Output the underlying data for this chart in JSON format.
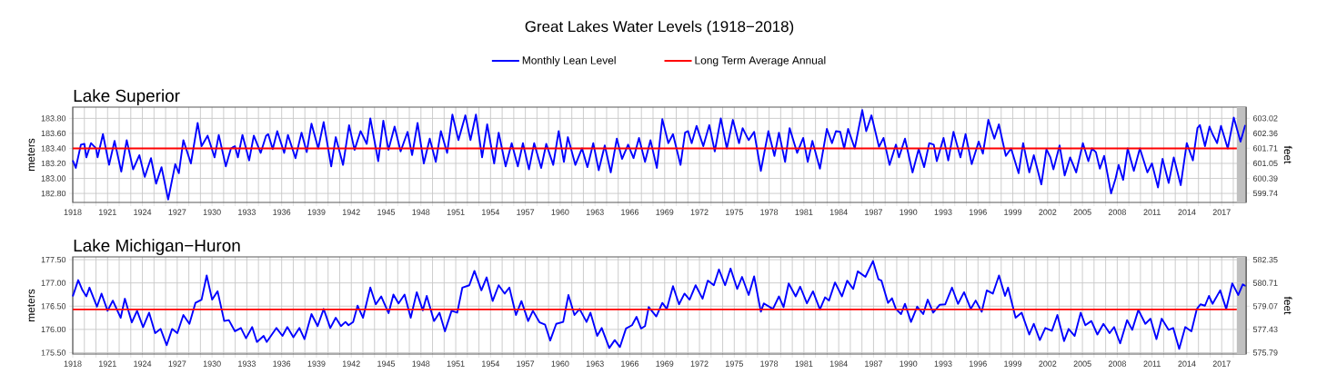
{
  "chart_data": [
    {
      "type": "line",
      "title": "Great Lakes Water Levels (1918−2018)",
      "subtitle": "Lake Superior",
      "ylabel": "meters",
      "y2label": "feet",
      "legend": "top",
      "grid": true,
      "xlim": [
        1918,
        2019.1
      ],
      "ylim": [
        182.68,
        183.95
      ],
      "y2lim": [
        599.34,
        603.51
      ],
      "xticks": [
        1918,
        {
          "value": 1919,
          "label": null
        },
        {
          "value": 1920,
          "label": null
        },
        1921,
        {
          "value": 1922,
          "label": null
        },
        {
          "value": 1923,
          "label": null
        },
        1924,
        {
          "value": 1925,
          "label": null
        },
        {
          "value": 1926,
          "label": null
        },
        1927,
        {
          "value": 1928,
          "label": null
        },
        {
          "value": 1929,
          "label": null
        },
        1930,
        {
          "value": 1931,
          "label": null
        },
        {
          "value": 1932,
          "label": null
        },
        1933,
        {
          "value": 1934,
          "label": null
        },
        {
          "value": 1935,
          "label": null
        },
        1936,
        {
          "value": 1937,
          "label": null
        },
        {
          "value": 1938,
          "label": null
        },
        1939,
        {
          "value": 1940,
          "label": null
        },
        {
          "value": 1941,
          "label": null
        },
        1942,
        {
          "value": 1943,
          "label": null
        },
        {
          "value": 1944,
          "label": null
        },
        1945,
        {
          "value": 1946,
          "label": null
        },
        {
          "value": 1947,
          "label": null
        },
        1948,
        {
          "value": 1949,
          "label": null
        },
        {
          "value": 1950,
          "label": null
        },
        1951,
        {
          "value": 1952,
          "label": null
        },
        {
          "value": 1953,
          "label": null
        },
        1954,
        {
          "value": 1955,
          "label": null
        },
        {
          "value": 1956,
          "label": null
        },
        1957,
        {
          "value": 1958,
          "label": null
        },
        {
          "value": 1959,
          "label": null
        },
        1960,
        {
          "value": 1961,
          "label": null
        },
        {
          "value": 1962,
          "label": null
        },
        1963,
        {
          "value": 1964,
          "label": null
        },
        {
          "value": 1965,
          "label": null
        },
        1966,
        {
          "value": 1967,
          "label": null
        },
        {
          "value": 1968,
          "label": null
        },
        1969,
        {
          "value": 1970,
          "label": null
        },
        {
          "value": 1971,
          "label": null
        },
        1972,
        {
          "value": 1973,
          "label": null
        },
        {
          "value": 1974,
          "label": null
        },
        1975,
        {
          "value": 1976,
          "label": null
        },
        {
          "value": 1977,
          "label": null
        },
        1978,
        {
          "value": 1979,
          "label": null
        },
        {
          "value": 1980,
          "label": null
        },
        1981,
        {
          "value": 1982,
          "label": null
        },
        {
          "value": 1983,
          "label": null
        },
        1984,
        {
          "value": 1985,
          "label": null
        },
        {
          "value": 1986,
          "label": null
        },
        1987,
        {
          "value": 1988,
          "label": null
        },
        {
          "value": 1989,
          "label": null
        },
        1990,
        {
          "value": 1991,
          "label": null
        },
        {
          "value": 1992,
          "label": null
        },
        1993,
        {
          "value": 1994,
          "label": null
        },
        {
          "value": 1995,
          "label": null
        },
        1996,
        {
          "value": 1997,
          "label": null
        },
        {
          "value": 1998,
          "label": null
        },
        1999,
        {
          "value": 2000,
          "label": null
        },
        {
          "value": 2001,
          "label": null
        },
        2002,
        {
          "value": 2003,
          "label": null
        },
        {
          "value": 2004,
          "label": null
        },
        2005,
        {
          "value": 2006,
          "label": null
        },
        {
          "value": 2007,
          "label": null
        },
        2008,
        {
          "value": 2009,
          "label": null
        },
        {
          "value": 2010,
          "label": null
        },
        2011,
        {
          "value": 2012,
          "label": null
        },
        {
          "value": 2013,
          "label": null
        },
        2014,
        {
          "value": 2015,
          "label": null
        },
        {
          "value": 2016,
          "label": null
        },
        2017,
        {
          "value": 2018,
          "label": null
        }
      ],
      "yticks": [
        {
          "value": 182.8,
          "label": "182.80"
        },
        {
          "value": 183.0,
          "label": "183.00"
        },
        {
          "value": 183.2,
          "label": "183.20"
        },
        {
          "value": 183.4,
          "label": "183.40"
        },
        {
          "value": 183.6,
          "label": "183.60"
        },
        {
          "value": 183.8,
          "label": "183.80"
        }
      ],
      "y2ticks": [
        599.74,
        600.39,
        601.05,
        601.71,
        602.36,
        603.02
      ],
      "bands": [
        {
          "axis": "x",
          "from": 2018.3,
          "to": 2019.1,
          "color": "#c0c0c0"
        }
      ],
      "series": [
        {
          "name": "Monthly Lean Level",
          "color": "#0000ff",
          "x": [
            1918.0,
            1918.26,
            1918.7,
            1919.0,
            1919.17,
            1919.57,
            1920.0,
            1920.14,
            1920.6,
            1921.13,
            1921.6,
            1922.18,
            1922.65,
            1923.2,
            1923.74,
            1924.2,
            1924.74,
            1925.18,
            1925.65,
            1926.22,
            1926.83,
            1927.14,
            1927.53,
            1928.18,
            1928.76,
            1929.1,
            1929.62,
            1930.22,
            1930.58,
            1931.19,
            1931.63,
            1931.97,
            1932.23,
            1932.62,
            1933.2,
            1933.6,
            1934.19,
            1934.66,
            1934.84,
            1935.23,
            1935.62,
            1936.22,
            1936.54,
            1937.19,
            1937.71,
            1938.16,
            1938.57,
            1939.15,
            1939.62,
            1940.27,
            1940.66,
            1941.29,
            1941.81,
            1942.28,
            1942.8,
            1943.33,
            1943.64,
            1944.32,
            1944.76,
            1945.2,
            1945.73,
            1946.25,
            1946.85,
            1947.24,
            1947.71,
            1948.25,
            1948.76,
            1949.28,
            1949.72,
            1950.26,
            1950.71,
            1951.23,
            1951.83,
            1952.27,
            1952.74,
            1953.27,
            1953.71,
            1954.31,
            1954.7,
            1955.3,
            1955.82,
            1956.35,
            1956.79,
            1957.31,
            1957.76,
            1958.36,
            1958.8,
            1959.4,
            1959.87,
            1960.32,
            1960.66,
            1961.31,
            1961.88,
            1962.35,
            1962.85,
            1963.32,
            1963.84,
            1964.36,
            1964.88,
            1965.33,
            1965.85,
            1966.32,
            1966.79,
            1967.31,
            1967.78,
            1968.33,
            1968.8,
            1969.32,
            1969.72,
            1970.37,
            1970.76,
            1971.02,
            1971.33,
            1971.75,
            1972.33,
            1972.85,
            1973.32,
            1973.84,
            1974.36,
            1974.88,
            1975.41,
            1975.72,
            1976.24,
            1976.71,
            1977.29,
            1977.94,
            1978.46,
            1978.85,
            1979.38,
            1979.77,
            1980.42,
            1980.94,
            1981.33,
            1981.73,
            1982.38,
            1982.98,
            1983.42,
            1983.76,
            1984.13,
            1984.47,
            1984.81,
            1985.38,
            1986.03,
            1986.37,
            1986.82,
            1987.47,
            1987.86,
            1988.38,
            1988.93,
            1989.19,
            1989.71,
            1990.36,
            1990.89,
            1991.36,
            1991.8,
            1992.19,
            1992.45,
            1993.03,
            1993.44,
            1993.89,
            1994.49,
            1994.93,
            1995.46,
            1996.06,
            1996.42,
            1996.89,
            1997.41,
            1997.8,
            1998.4,
            1998.85,
            1999.5,
            1999.89,
            2000.42,
            2000.81,
            2001.46,
            2001.9,
            2002.24,
            2002.5,
            2003.03,
            2003.47,
            2003.94,
            2004.46,
            2005.04,
            2005.51,
            2005.82,
            2006.16,
            2006.5,
            2006.87,
            2007.47,
            2007.86,
            2008.12,
            2008.51,
            2008.9,
            2009.43,
            2009.95,
            2010.6,
            2010.99,
            2011.51,
            2011.9,
            2012.43,
            2012.87,
            2013.47,
            2013.99,
            2014.52,
            2014.91,
            2015.12,
            2015.56,
            2015.95,
            2016.21,
            2016.6,
            2016.94,
            2017.52,
            2018.04,
            2018.62,
            2019.03
          ],
          "values": [
            183.24,
            183.14,
            183.45,
            183.46,
            183.28,
            183.47,
            183.4,
            183.28,
            183.59,
            183.18,
            183.5,
            183.09,
            183.51,
            183.12,
            183.31,
            183.02,
            183.27,
            182.93,
            183.15,
            182.72,
            183.19,
            183.07,
            183.51,
            183.2,
            183.74,
            183.43,
            183.57,
            183.28,
            183.58,
            183.16,
            183.4,
            183.43,
            183.28,
            183.58,
            183.24,
            183.57,
            183.34,
            183.57,
            183.59,
            183.39,
            183.63,
            183.34,
            183.58,
            183.27,
            183.61,
            183.35,
            183.73,
            183.4,
            183.75,
            183.16,
            183.55,
            183.18,
            183.71,
            183.38,
            183.63,
            183.46,
            183.8,
            183.23,
            183.77,
            183.38,
            183.69,
            183.36,
            183.62,
            183.31,
            183.74,
            183.2,
            183.53,
            183.22,
            183.63,
            183.34,
            183.85,
            183.51,
            183.84,
            183.51,
            183.85,
            183.28,
            183.72,
            183.2,
            183.61,
            183.16,
            183.47,
            183.16,
            183.47,
            183.12,
            183.47,
            183.14,
            183.46,
            183.18,
            183.63,
            183.22,
            183.55,
            183.18,
            183.4,
            183.15,
            183.47,
            183.11,
            183.44,
            183.08,
            183.53,
            183.26,
            183.45,
            183.27,
            183.54,
            183.22,
            183.51,
            183.14,
            183.79,
            183.47,
            183.59,
            183.18,
            183.61,
            183.63,
            183.47,
            183.7,
            183.43,
            183.71,
            183.36,
            183.8,
            183.4,
            183.78,
            183.47,
            183.67,
            183.51,
            183.62,
            183.1,
            183.63,
            183.3,
            183.61,
            183.22,
            183.67,
            183.34,
            183.54,
            183.22,
            183.5,
            183.13,
            183.66,
            183.47,
            183.63,
            183.62,
            183.4,
            183.66,
            183.4,
            183.91,
            183.63,
            183.84,
            183.42,
            183.54,
            183.18,
            183.45,
            183.28,
            183.53,
            183.08,
            183.39,
            183.15,
            183.47,
            183.45,
            183.23,
            183.54,
            183.24,
            183.62,
            183.28,
            183.59,
            183.19,
            183.49,
            183.33,
            183.78,
            183.53,
            183.72,
            183.3,
            183.4,
            183.07,
            183.47,
            183.08,
            183.31,
            182.92,
            183.39,
            183.28,
            183.12,
            183.44,
            183.04,
            183.28,
            183.08,
            183.47,
            183.23,
            183.4,
            183.35,
            183.13,
            183.3,
            182.8,
            183.0,
            183.18,
            182.98,
            183.4,
            183.1,
            183.4,
            183.08,
            183.2,
            182.88,
            183.26,
            182.94,
            183.28,
            182.91,
            183.47,
            183.24,
            183.67,
            183.71,
            183.43,
            183.69,
            183.59,
            183.47,
            183.7,
            183.4,
            183.81,
            183.49,
            183.71
          ]
        },
        {
          "name": "Long Term Average Annual",
          "color": "#ff0000",
          "x": [
            1918,
            2018.3
          ],
          "values": [
            183.4,
            183.4
          ]
        }
      ]
    },
    {
      "type": "line",
      "title": "Lake Michigan−Huron",
      "ylabel": "meters",
      "y2label": "feet",
      "grid": true,
      "xlim": [
        1918,
        2019.1
      ],
      "ylim": [
        175.47,
        177.56
      ],
      "y2lim": [
        575.69,
        582.55
      ],
      "xticks": [
        1918,
        {
          "value": 1919,
          "label": null
        },
        {
          "value": 1920,
          "label": null
        },
        1921,
        {
          "value": 1922,
          "label": null
        },
        {
          "value": 1923,
          "label": null
        },
        1924,
        {
          "value": 1925,
          "label": null
        },
        {
          "value": 1926,
          "label": null
        },
        1927,
        {
          "value": 1928,
          "label": null
        },
        {
          "value": 1929,
          "label": null
        },
        1930,
        {
          "value": 1931,
          "label": null
        },
        {
          "value": 1932,
          "label": null
        },
        1933,
        {
          "value": 1934,
          "label": null
        },
        {
          "value": 1935,
          "label": null
        },
        1936,
        {
          "value": 1937,
          "label": null
        },
        {
          "value": 1938,
          "label": null
        },
        1939,
        {
          "value": 1940,
          "label": null
        },
        {
          "value": 1941,
          "label": null
        },
        1942,
        {
          "value": 1943,
          "label": null
        },
        {
          "value": 1944,
          "label": null
        },
        1945,
        {
          "value": 1946,
          "label": null
        },
        {
          "value": 1947,
          "label": null
        },
        1948,
        {
          "value": 1949,
          "label": null
        },
        {
          "value": 1950,
          "label": null
        },
        1951,
        {
          "value": 1952,
          "label": null
        },
        {
          "value": 1953,
          "label": null
        },
        1954,
        {
          "value": 1955,
          "label": null
        },
        {
          "value": 1956,
          "label": null
        },
        1957,
        {
          "value": 1958,
          "label": null
        },
        {
          "value": 1959,
          "label": null
        },
        1960,
        {
          "value": 1961,
          "label": null
        },
        {
          "value": 1962,
          "label": null
        },
        1963,
        {
          "value": 1964,
          "label": null
        },
        {
          "value": 1965,
          "label": null
        },
        1966,
        {
          "value": 1967,
          "label": null
        },
        {
          "value": 1968,
          "label": null
        },
        1969,
        {
          "value": 1970,
          "label": null
        },
        {
          "value": 1971,
          "label": null
        },
        1972,
        {
          "value": 1973,
          "label": null
        },
        {
          "value": 1974,
          "label": null
        },
        1975,
        {
          "value": 1976,
          "label": null
        },
        {
          "value": 1977,
          "label": null
        },
        1978,
        {
          "value": 1979,
          "label": null
        },
        {
          "value": 1980,
          "label": null
        },
        1981,
        {
          "value": 1982,
          "label": null
        },
        {
          "value": 1983,
          "label": null
        },
        1984,
        {
          "value": 1985,
          "label": null
        },
        {
          "value": 1986,
          "label": null
        },
        1987,
        {
          "value": 1988,
          "label": null
        },
        {
          "value": 1989,
          "label": null
        },
        1990,
        {
          "value": 1991,
          "label": null
        },
        {
          "value": 1992,
          "label": null
        },
        1993,
        {
          "value": 1994,
          "label": null
        },
        {
          "value": 1995,
          "label": null
        },
        1996,
        {
          "value": 1997,
          "label": null
        },
        {
          "value": 1998,
          "label": null
        },
        1999,
        {
          "value": 2000,
          "label": null
        },
        {
          "value": 2001,
          "label": null
        },
        2002,
        {
          "value": 2003,
          "label": null
        },
        {
          "value": 2004,
          "label": null
        },
        2005,
        {
          "value": 2006,
          "label": null
        },
        {
          "value": 2007,
          "label": null
        },
        2008,
        {
          "value": 2009,
          "label": null
        },
        {
          "value": 2010,
          "label": null
        },
        2011,
        {
          "value": 2012,
          "label": null
        },
        {
          "value": 2013,
          "label": null
        },
        2014,
        {
          "value": 2015,
          "label": null
        },
        {
          "value": 2016,
          "label": null
        },
        2017,
        {
          "value": 2018,
          "label": null
        }
      ],
      "yticks": [
        {
          "value": 175.5,
          "label": "175.50"
        },
        {
          "value": 176.0,
          "label": "176.00"
        },
        {
          "value": 176.5,
          "label": "176.50"
        },
        {
          "value": 177.0,
          "label": "177.00"
        },
        {
          "value": 177.5,
          "label": "177.50"
        }
      ],
      "y2ticks": [
        575.79,
        577.43,
        579.07,
        580.71,
        582.35
      ],
      "bands": [
        {
          "axis": "x",
          "from": 2018.3,
          "to": 2019.1,
          "color": "#c0c0c0"
        }
      ],
      "series": [
        {
          "color": "#0000ff",
          "x": [
            1918.0,
            1918.47,
            1918.84,
            1919.17,
            1919.44,
            1920.09,
            1920.48,
            1921.0,
            1921.45,
            1922.13,
            1922.49,
            1923.09,
            1923.54,
            1924.06,
            1924.58,
            1925.1,
            1925.57,
            1926.09,
            1926.56,
            1927.01,
            1927.53,
            1928.05,
            1928.57,
            1929.1,
            1929.54,
            1930.01,
            1930.48,
            1931.05,
            1931.45,
            1931.97,
            1932.49,
            1932.93,
            1933.46,
            1933.87,
            1934.45,
            1934.71,
            1935.55,
            1936.07,
            1936.49,
            1937.01,
            1937.53,
            1937.97,
            1938.57,
            1939.1,
            1939.62,
            1940.19,
            1940.66,
            1941.11,
            1941.5,
            1941.76,
            1942.16,
            1942.54,
            1943.01,
            1943.64,
            1944.11,
            1944.58,
            1945.21,
            1945.63,
            1946.07,
            1946.59,
            1947.12,
            1947.64,
            1948.16,
            1948.5,
            1949.13,
            1949.6,
            1950.07,
            1950.64,
            1951.13,
            1951.57,
            1952.17,
            1952.61,
            1953.21,
            1953.66,
            1954.18,
            1954.7,
            1955.22,
            1955.62,
            1956.19,
            1956.66,
            1957.24,
            1957.65,
            1958.23,
            1958.7,
            1959.14,
            1959.66,
            1960.26,
            1960.71,
            1961.23,
            1961.67,
            1962.27,
            1962.61,
            1963.19,
            1963.58,
            1964.23,
            1964.7,
            1965.15,
            1965.67,
            1966.19,
            1966.58,
            1966.97,
            1967.31,
            1967.63,
            1968.28,
            1968.8,
            1969.19,
            1969.72,
            1970.24,
            1970.71,
            1971.15,
            1971.67,
            1972.27,
            1972.72,
            1973.24,
            1973.68,
            1974.21,
            1974.68,
            1975.25,
            1975.67,
            1976.24,
            1976.71,
            1977.29,
            1977.55,
            1978.33,
            1978.85,
            1979.25,
            1979.69,
            1980.29,
            1980.68,
            1981.26,
            1981.78,
            1982.38,
            1982.82,
            1983.16,
            1983.68,
            1984.28,
            1984.73,
            1985.25,
            1985.64,
            1986.3,
            1986.95,
            1987.42,
            1987.68,
            1988.25,
            1988.59,
            1988.93,
            1989.37,
            1989.71,
            1990.23,
            1990.76,
            1991.28,
            1991.67,
            1992.14,
            1992.71,
            1993.18,
            1993.76,
            1994.28,
            1994.8,
            1995.38,
            1995.8,
            1996.32,
            1996.76,
            1997.28,
            1997.81,
            1998.33,
            1998.59,
            1999.24,
            1999.76,
            2000.42,
            2000.81,
            2001.33,
            2001.8,
            2002.37,
            2002.84,
            2003.42,
            2003.81,
            2004.33,
            2004.85,
            2005.25,
            2005.77,
            2006.29,
            2006.81,
            2007.34,
            2007.73,
            2008.25,
            2008.85,
            2009.29,
            2009.82,
            2010.42,
            2010.86,
            2011.38,
            2011.83,
            2012.43,
            2012.82,
            2013.34,
            2013.86,
            2014.39,
            2014.86,
            2015.17,
            2015.56,
            2015.9,
            2016.21,
            2016.87,
            2017.39,
            2017.91,
            2018.43,
            2018.82,
            2019.08
          ],
          "values": [
            176.71,
            177.06,
            176.84,
            176.71,
            176.9,
            176.49,
            176.77,
            176.4,
            176.62,
            176.25,
            176.66,
            176.15,
            176.4,
            176.05,
            176.36,
            175.92,
            176.01,
            175.66,
            176.01,
            175.92,
            176.31,
            176.12,
            176.57,
            176.64,
            177.16,
            176.64,
            176.82,
            176.18,
            176.2,
            175.96,
            176.03,
            175.81,
            176.05,
            175.73,
            175.86,
            175.73,
            176.03,
            175.86,
            176.05,
            175.83,
            176.03,
            175.79,
            176.33,
            176.07,
            176.44,
            176.03,
            176.25,
            176.07,
            176.16,
            176.09,
            176.16,
            176.51,
            176.25,
            176.9,
            176.54,
            176.71,
            176.35,
            176.75,
            176.56,
            176.75,
            176.25,
            176.8,
            176.41,
            176.72,
            176.18,
            176.36,
            175.96,
            176.4,
            176.36,
            176.9,
            176.95,
            177.26,
            176.84,
            177.12,
            176.61,
            176.95,
            176.77,
            176.9,
            176.31,
            176.61,
            176.18,
            176.4,
            176.15,
            176.1,
            175.76,
            176.12,
            176.16,
            176.74,
            176.31,
            176.44,
            176.16,
            176.36,
            175.86,
            176.03,
            175.6,
            175.77,
            175.62,
            176.02,
            176.09,
            176.27,
            176.02,
            176.07,
            176.48,
            176.28,
            176.57,
            176.44,
            176.93,
            176.54,
            176.77,
            176.64,
            176.95,
            176.66,
            177.05,
            176.95,
            177.29,
            176.95,
            177.31,
            176.87,
            177.13,
            176.74,
            177.14,
            176.38,
            176.56,
            176.44,
            176.71,
            176.48,
            176.99,
            176.71,
            176.92,
            176.56,
            176.82,
            176.43,
            176.69,
            176.62,
            177.01,
            176.71,
            177.05,
            176.87,
            177.25,
            177.13,
            177.47,
            177.08,
            177.05,
            176.57,
            176.67,
            176.44,
            176.33,
            176.55,
            176.16,
            176.49,
            176.33,
            176.64,
            176.36,
            176.53,
            176.54,
            176.9,
            176.55,
            176.8,
            176.44,
            176.62,
            176.38,
            176.84,
            176.77,
            177.16,
            176.72,
            176.9,
            176.25,
            176.36,
            175.89,
            176.12,
            175.77,
            176.03,
            175.97,
            176.31,
            175.75,
            176.01,
            175.86,
            176.36,
            176.09,
            176.18,
            175.89,
            176.12,
            175.92,
            176.05,
            175.7,
            176.2,
            175.99,
            176.42,
            176.12,
            176.23,
            175.79,
            176.23,
            175.99,
            176.03,
            175.58,
            176.05,
            175.96,
            176.44,
            176.54,
            176.51,
            176.72,
            176.55,
            176.84,
            176.44,
            176.99,
            176.74,
            176.97,
            176.93
          ]
        },
        {
          "color": "#ff0000",
          "x": [
            1918,
            2018.3
          ],
          "values": [
            176.43,
            176.43
          ]
        }
      ]
    }
  ]
}
